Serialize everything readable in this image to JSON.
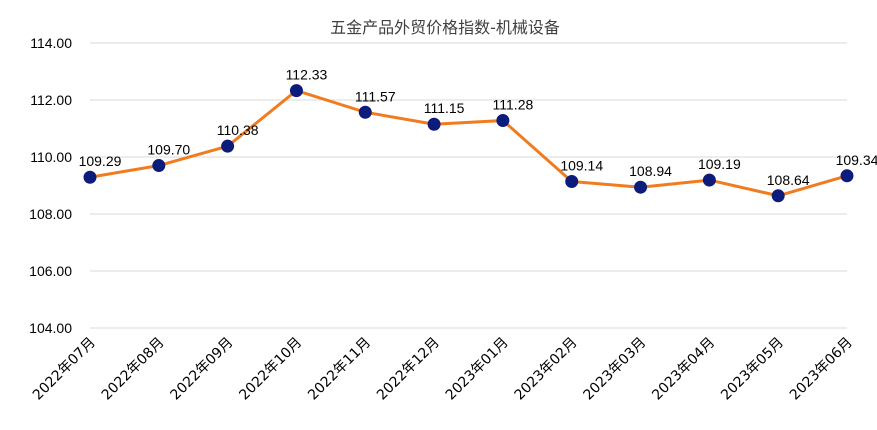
{
  "chart_data": {
    "type": "line",
    "title": "五金产品外贸价格指数-机械设备",
    "xlabel": "",
    "ylabel": "",
    "categories": [
      "2022年07月",
      "2022年08月",
      "2022年09月",
      "2022年10月",
      "2022年11月",
      "2022年12月",
      "2023年01月",
      "2023年02月",
      "2023年03月",
      "2023年04月",
      "2023年05月",
      "2023年06月"
    ],
    "series": [
      {
        "values": [
          109.29,
          109.7,
          110.38,
          112.33,
          111.57,
          111.15,
          111.28,
          109.14,
          108.94,
          109.19,
          108.64,
          109.34
        ]
      }
    ],
    "data_labels": [
      "109.29",
      "109.70",
      "110.38",
      "112.33",
      "111.57",
      "111.15",
      "111.28",
      "109.14",
      "108.94",
      "109.19",
      "108.64",
      "109.34"
    ],
    "ylim": [
      104,
      114
    ],
    "yticks": [
      "104.00",
      "106.00",
      "108.00",
      "110.00",
      "112.00",
      "114.00"
    ],
    "grid": true,
    "legend": "none",
    "colors": {
      "line": "#F07C1F",
      "marker": "#0C1C7A",
      "grid": "#D9D9D9"
    }
  }
}
